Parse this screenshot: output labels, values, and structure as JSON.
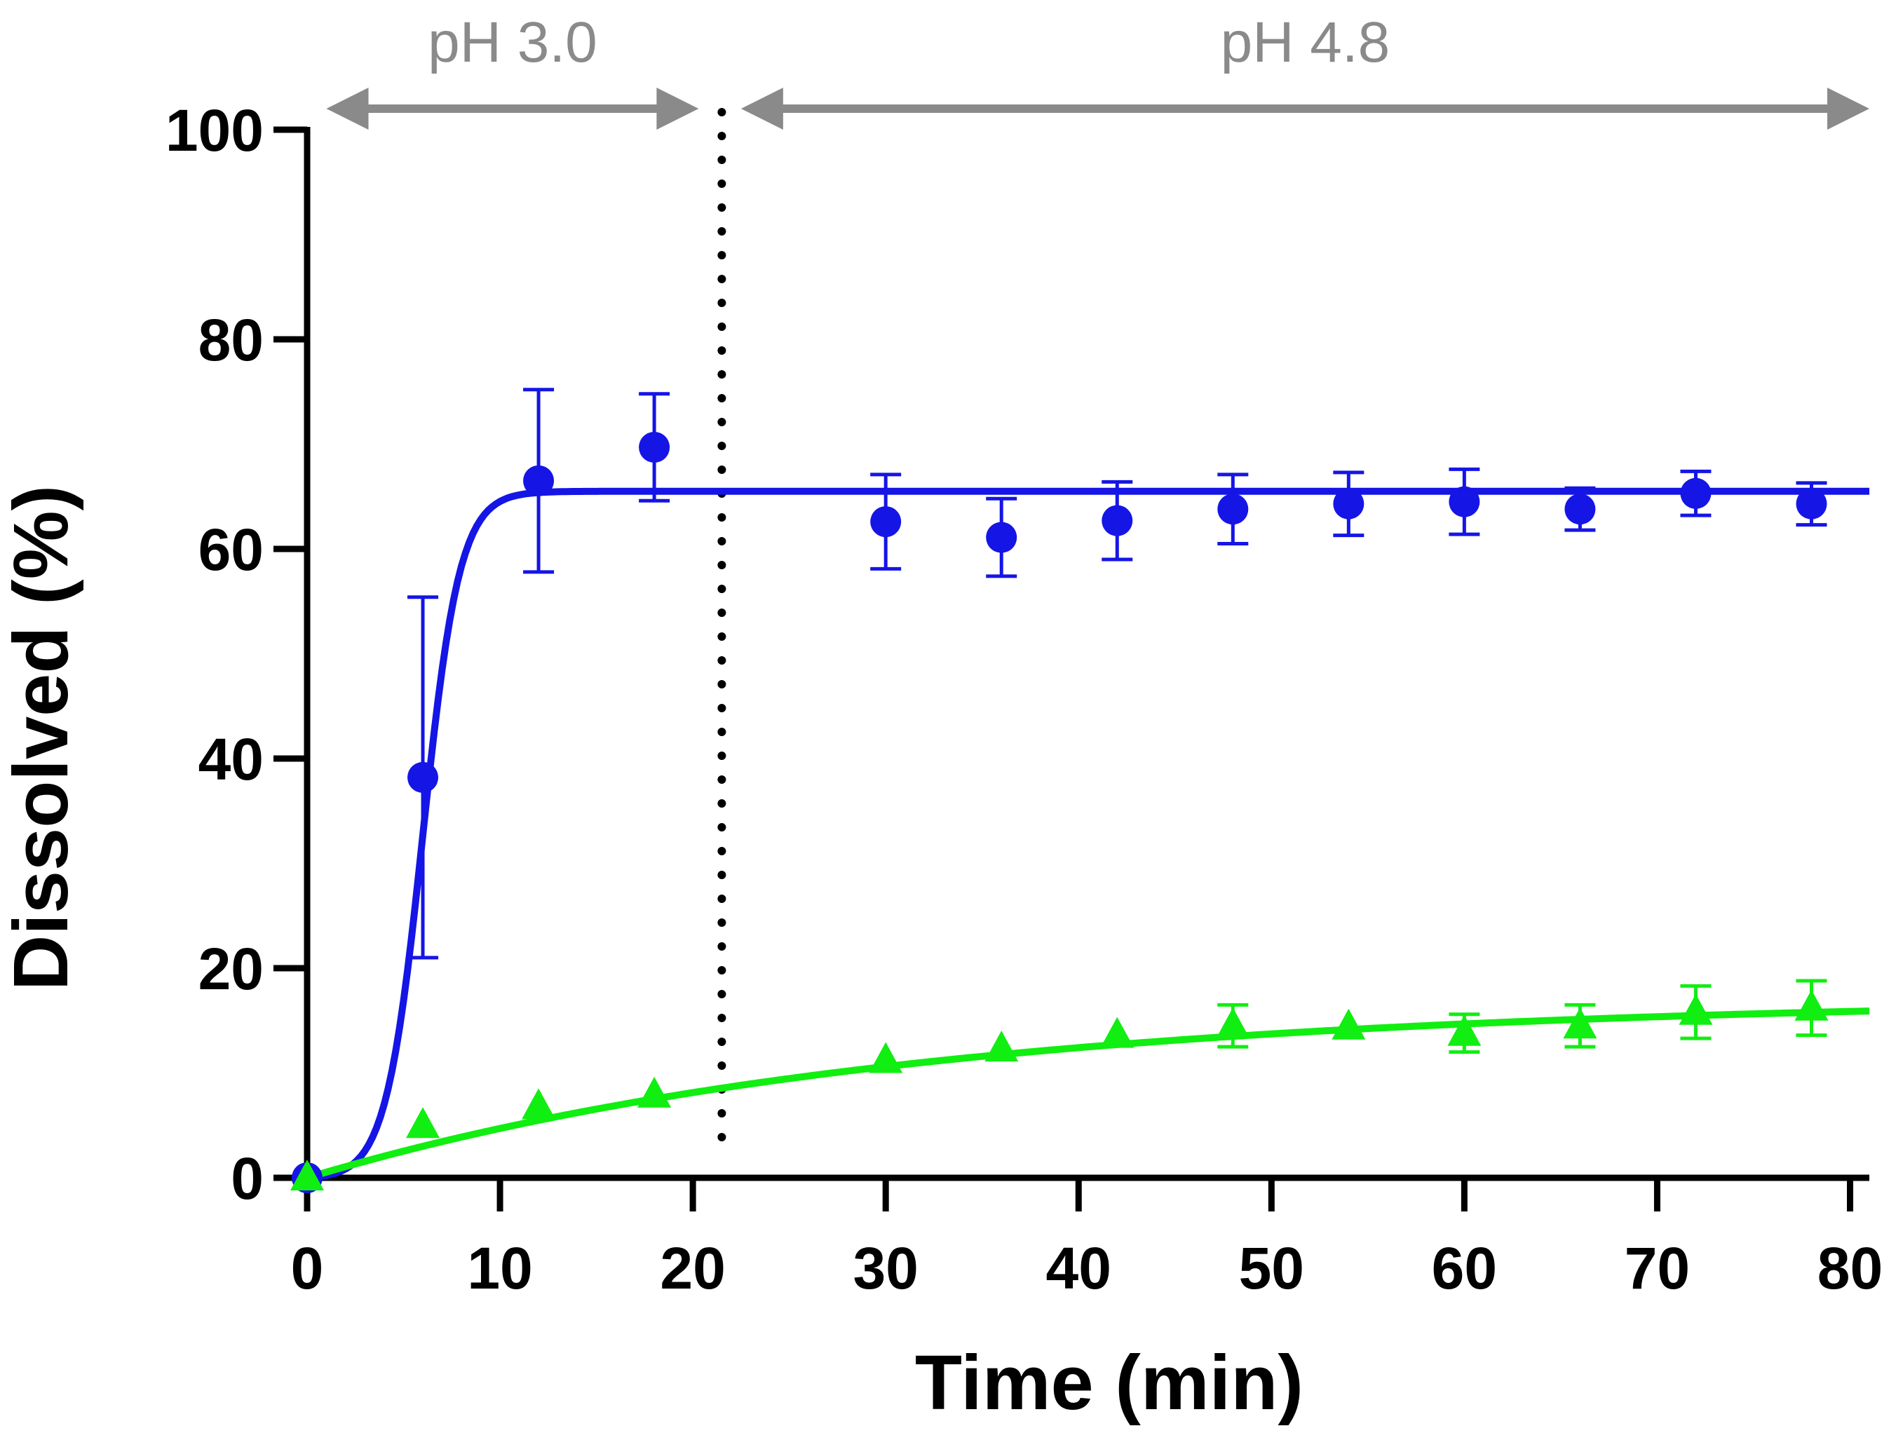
{
  "chart_data": {
    "type": "scatter",
    "title": "",
    "xlabel": "Time (min)",
    "ylabel": "Dissolved (%)",
    "xlim": [
      0,
      81
    ],
    "ylim": [
      0,
      100
    ],
    "xticks": [
      0,
      10,
      20,
      30,
      40,
      50,
      60,
      70,
      80
    ],
    "yticks": [
      0,
      20,
      40,
      60,
      80,
      100
    ],
    "grid": false,
    "phase_change_x": 21.5,
    "phases": [
      {
        "label": "pH 3.0",
        "x_start": 1.0,
        "x_end": 20.3
      },
      {
        "label": "pH 4.8",
        "x_start": 22.5,
        "x_end": 81
      }
    ],
    "series": [
      {
        "name": "blue",
        "color": "#1515e6",
        "marker": "circle",
        "x": [
          0,
          6,
          12,
          18,
          30,
          36,
          42,
          48,
          54,
          60,
          66,
          72,
          78
        ],
        "y": [
          0,
          38.2,
          66.5,
          69.7,
          62.6,
          61.1,
          62.7,
          63.8,
          64.3,
          64.5,
          63.8,
          65.3,
          64.3
        ],
        "err": [
          0,
          17.2,
          8.7,
          5.1,
          4.5,
          3.7,
          3.7,
          3.3,
          3.0,
          3.1,
          2.0,
          2.1,
          2.0
        ],
        "fit": {
          "model": "sigmoid",
          "plateau": 65.5,
          "midpoint": 6.0,
          "slope": 1.05
        }
      },
      {
        "name": "green",
        "color": "#11ee11",
        "marker": "triangle",
        "x": [
          0,
          6,
          12,
          18,
          30,
          36,
          42,
          48,
          54,
          60,
          66,
          72,
          78
        ],
        "y": [
          0,
          5.0,
          6.8,
          7.9,
          11.2,
          12.3,
          13.6,
          14.5,
          14.4,
          13.8,
          14.5,
          15.8,
          16.2
        ],
        "err": [
          0,
          0,
          0,
          0,
          0,
          0,
          0,
          2.0,
          0,
          1.8,
          2.0,
          2.5,
          2.6
        ],
        "fit": {
          "model": "exponential",
          "plateau": 17.2,
          "rate": 0.032
        }
      }
    ]
  }
}
